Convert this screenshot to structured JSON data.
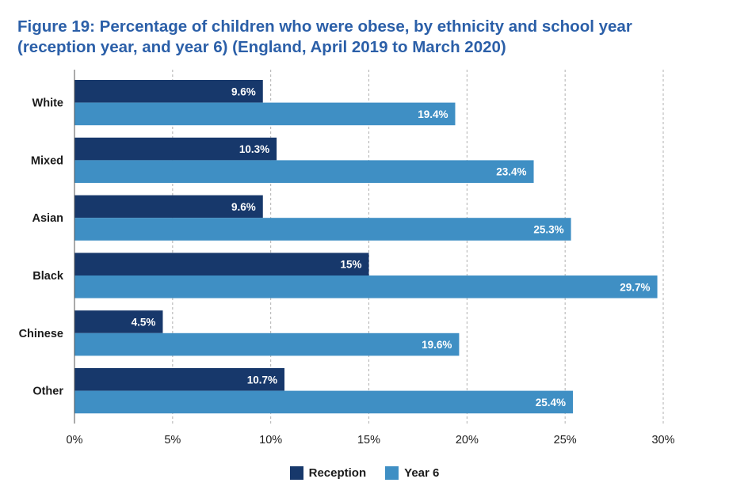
{
  "title": "Figure 19: Percentage of children who were obese, by ethnicity and school year (reception year, and year 6) (England, April 2019 to March 2020)",
  "colors": {
    "reception": "#17386b",
    "year6": "#3f8fc4",
    "grid": "#b0b0b0",
    "text": "#1b1b1b"
  },
  "chart_data": {
    "type": "bar",
    "orientation": "horizontal",
    "categories": [
      "White",
      "Mixed",
      "Asian",
      "Black",
      "Chinese",
      "Other"
    ],
    "series": [
      {
        "name": "Reception",
        "values": [
          9.6,
          10.3,
          9.6,
          15,
          4.5,
          10.7
        ],
        "labels": [
          "9.6%",
          "10.3%",
          "9.6%",
          "15%",
          "4.5%",
          "10.7%"
        ]
      },
      {
        "name": "Year 6",
        "values": [
          19.4,
          23.4,
          25.3,
          29.7,
          19.6,
          25.4
        ],
        "labels": [
          "19.4%",
          "23.4%",
          "25.3%",
          "29.7%",
          "19.6%",
          "25.4%"
        ]
      }
    ],
    "xlim": [
      0,
      30
    ],
    "xticks": [
      0,
      5,
      10,
      15,
      20,
      25,
      30
    ],
    "xtick_labels": [
      "0%",
      "5%",
      "10%",
      "15%",
      "20%",
      "25%",
      "30%"
    ],
    "grid": "vertical dashed",
    "legend_position": "bottom-center"
  }
}
